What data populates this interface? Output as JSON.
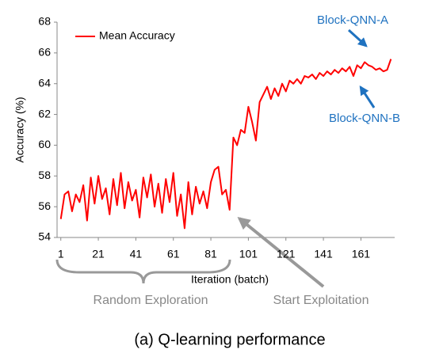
{
  "chart_data": {
    "type": "line",
    "x": [
      1,
      3,
      5,
      7,
      9,
      11,
      13,
      15,
      17,
      19,
      21,
      23,
      25,
      27,
      29,
      31,
      33,
      35,
      37,
      39,
      41,
      43,
      45,
      47,
      49,
      51,
      53,
      55,
      57,
      59,
      61,
      63,
      65,
      67,
      69,
      71,
      73,
      75,
      77,
      79,
      81,
      83,
      85,
      87,
      89,
      91,
      93,
      95,
      97,
      99,
      101,
      103,
      105,
      107,
      109,
      111,
      113,
      115,
      117,
      119,
      121,
      123,
      125,
      127,
      129,
      131,
      133,
      135,
      137,
      139,
      141,
      143,
      145,
      147,
      149,
      151,
      153,
      155,
      157,
      159,
      161,
      163,
      165,
      167,
      169,
      171,
      173,
      175,
      177
    ],
    "series": [
      {
        "name": "Mean Accuracy",
        "color": "#ff0000",
        "values": [
          55.2,
          56.8,
          57,
          55.7,
          56.8,
          56.3,
          57.4,
          55.1,
          57.9,
          56.2,
          58,
          56.5,
          57.2,
          55.5,
          57.8,
          56.1,
          58.2,
          55.9,
          57.6,
          56.4,
          57.1,
          55.3,
          57.9,
          56.6,
          58.1,
          56,
          57.5,
          55.6,
          57.8,
          56.3,
          58.2,
          55.4,
          56.8,
          54.6,
          57.6,
          55.5,
          57.3,
          56.2,
          57,
          55.9,
          57.6,
          58.4,
          58.6,
          56.8,
          57.1,
          55.8,
          60.5,
          60,
          61,
          60.8,
          62.5,
          61.5,
          60.3,
          62.8,
          63.3,
          63.8,
          63,
          63.7,
          63.2,
          64,
          63.5,
          64.2,
          64,
          64.3,
          64,
          64.5,
          64.4,
          64.6,
          64.3,
          64.7,
          64.5,
          64.8,
          64.6,
          64.9,
          64.7,
          65,
          64.8,
          65.1,
          64.5,
          65.2,
          65,
          65.4,
          65.2,
          65.1,
          64.9,
          65,
          64.8,
          64.9,
          65.6
        ]
      }
    ],
    "xlabel": "Iteration (batch)",
    "ylabel": "Accuracy (%)",
    "xlim": [
      -1,
      179
    ],
    "xticks": [
      1,
      21,
      41,
      61,
      81,
      101,
      121,
      141,
      161
    ],
    "ylim": [
      54,
      68
    ],
    "yticks": [
      54,
      56,
      58,
      60,
      62,
      64,
      66,
      68
    ],
    "legend": "top-left",
    "annotations": [
      "Block-QNN-A",
      "Block-QNN-B",
      "Random Exploration",
      "Start Exploitation"
    ],
    "caption": "(a)  Q-learning performance"
  }
}
